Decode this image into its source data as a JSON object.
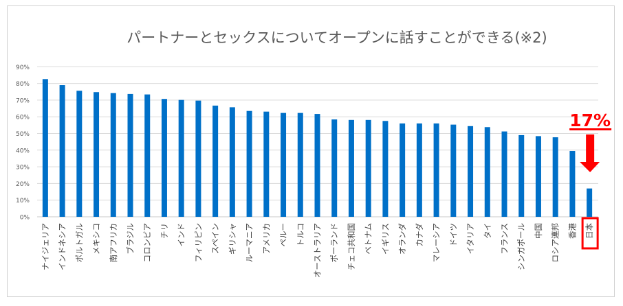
{
  "chart_data": {
    "type": "bar",
    "title": "パートナーとセックスについてオープンに話すことができる(※2)",
    "xlabel": "",
    "ylabel": "",
    "ylim": [
      0,
      90
    ],
    "yticks": [
      "0%",
      "10%",
      "20%",
      "30%",
      "40%",
      "50%",
      "60%",
      "70%",
      "80%",
      "90%"
    ],
    "grid": true,
    "bar_color": "#0070C8",
    "highlight_color": "#FF0000",
    "categories": [
      "ナイジェリア",
      "インドネシア",
      "ポルトガル",
      "メキシコ",
      "南アフリカ",
      "ブラジル",
      "コロンビア",
      "チリ",
      "インド",
      "フィリピン",
      "スペイン",
      "ギリシャ",
      "ルーマニア",
      "アメリカ",
      "ペルー",
      "トルコ",
      "オーストラリア",
      "ポーランド",
      "チェコ共和国",
      "ベトナム",
      "イギリス",
      "オランダ",
      "カナダ",
      "マレーシア",
      "ドイツ",
      "イタリア",
      "タイ",
      "フランス",
      "シンガポール",
      "中国",
      "ロシア連邦",
      "香港",
      "日本"
    ],
    "values": [
      82.6,
      79.0,
      75.6,
      74.8,
      74.2,
      73.7,
      73.4,
      70.7,
      70.1,
      69.7,
      66.7,
      65.7,
      63.5,
      63.1,
      62.3,
      62.3,
      61.7,
      58.4,
      58.1,
      58.1,
      57.5,
      56.0,
      56.0,
      56.0,
      55.3,
      54.4,
      53.8,
      51.2,
      49.0,
      48.4,
      47.7,
      39.5,
      17.0
    ],
    "annotation": {
      "text": "17%",
      "target": "日本",
      "arrow": "down"
    }
  }
}
